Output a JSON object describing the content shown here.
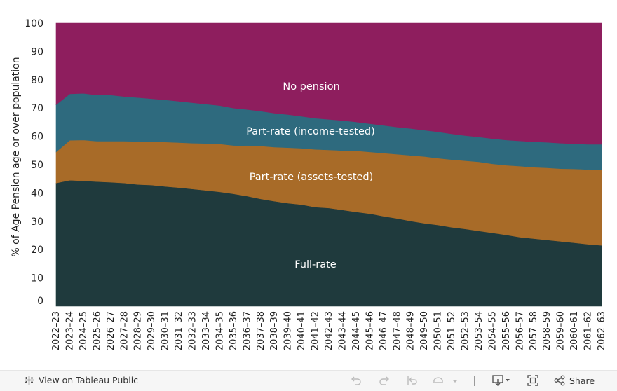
{
  "chart_data": {
    "type": "area",
    "stacked": true,
    "title": "",
    "xlabel": "",
    "ylabel": "% of Age Pension age or over population",
    "ylim": [
      0,
      100
    ],
    "yticks": [
      0,
      10,
      20,
      30,
      40,
      50,
      60,
      70,
      80,
      90,
      100
    ],
    "grid": false,
    "categories": [
      "2022–23",
      "2023–24",
      "2024–25",
      "2025–26",
      "2026–27",
      "2027–28",
      "2028–29",
      "2029–30",
      "2030–31",
      "2031–32",
      "2032–33",
      "2033–34",
      "2034–35",
      "2035–36",
      "2036–37",
      "2037–38",
      "2038–39",
      "2039–40",
      "2040–41",
      "2041–42",
      "2042–43",
      "2043–44",
      "2044–45",
      "2045–46",
      "2046–47",
      "2047–48",
      "2048–49",
      "2049–50",
      "2050–51",
      "2051–52",
      "2052–53",
      "2053–54",
      "2054–55",
      "2055–56",
      "2056–57",
      "2057–58",
      "2058–59",
      "2059–60",
      "2060–61",
      "2061–62",
      "2062–63"
    ],
    "series": [
      {
        "name": "Full-rate",
        "color": "#1f3a3d",
        "values": [
          43.5,
          44.5,
          44.3,
          44.0,
          43.8,
          43.5,
          43.0,
          42.8,
          42.3,
          41.9,
          41.4,
          40.9,
          40.4,
          39.7,
          38.9,
          37.9,
          37.1,
          36.4,
          35.9,
          35.0,
          34.7,
          34.0,
          33.3,
          32.7,
          31.8,
          31.0,
          30.1,
          29.3,
          28.7,
          27.9,
          27.3,
          26.6,
          25.9,
          25.2,
          24.4,
          23.9,
          23.4,
          22.9,
          22.4,
          21.9,
          21.5
        ]
      },
      {
        "name": "Part-rate (assets-tested)",
        "color": "#a86b28",
        "values": [
          11.0,
          14.1,
          14.4,
          14.3,
          14.5,
          14.8,
          15.2,
          15.2,
          15.7,
          15.9,
          16.2,
          16.6,
          16.9,
          17.1,
          17.8,
          18.7,
          19.1,
          19.6,
          19.9,
          20.4,
          20.5,
          21.0,
          21.6,
          21.8,
          22.3,
          22.7,
          23.2,
          23.6,
          23.6,
          23.9,
          24.1,
          24.4,
          24.4,
          24.6,
          25.1,
          25.2,
          25.5,
          25.7,
          26.1,
          26.4,
          26.6
        ]
      },
      {
        "name": "Part-rate (income-tested)",
        "color": "#2e6a7e",
        "values": [
          16.7,
          16.4,
          16.5,
          16.3,
          16.3,
          15.8,
          15.5,
          15.3,
          14.9,
          14.6,
          14.3,
          13.9,
          13.6,
          13.2,
          12.8,
          12.3,
          12.0,
          11.7,
          11.3,
          11.0,
          10.8,
          10.6,
          10.2,
          10.0,
          9.8,
          9.6,
          9.5,
          9.3,
          9.3,
          9.1,
          8.9,
          8.8,
          8.9,
          8.9,
          8.9,
          9.0,
          9.0,
          9.0,
          8.9,
          8.9,
          9.1
        ]
      },
      {
        "name": "No pension",
        "color": "#8e1e5e",
        "values": [
          28.8,
          25.0,
          24.8,
          25.4,
          25.4,
          25.9,
          26.3,
          26.7,
          27.1,
          27.6,
          28.1,
          28.6,
          29.1,
          30.0,
          30.5,
          31.1,
          31.8,
          32.3,
          32.9,
          33.6,
          34.0,
          34.4,
          34.9,
          35.5,
          36.1,
          36.7,
          37.2,
          37.8,
          38.4,
          39.1,
          39.7,
          40.2,
          40.8,
          41.3,
          41.6,
          41.9,
          42.1,
          42.4,
          42.6,
          42.8,
          42.8
        ]
      }
    ],
    "annotations": [
      {
        "text": "No pension",
        "series": "No pension"
      },
      {
        "text": "Part-rate (income-tested)",
        "series": "Part-rate (income-tested)"
      },
      {
        "text": "Part-rate (assets-tested)",
        "series": "Part-rate (assets-tested)"
      },
      {
        "text": "Full-rate",
        "series": "Full-rate"
      }
    ]
  },
  "footer": {
    "view_label": "View on Tableau Public",
    "share_label": "Share",
    "icons": [
      "tableau-logo-icon",
      "undo-icon",
      "redo-icon",
      "revert-icon",
      "refresh-icon",
      "chevron-down-icon",
      "download-icon",
      "fullscreen-icon",
      "share-icon"
    ]
  }
}
